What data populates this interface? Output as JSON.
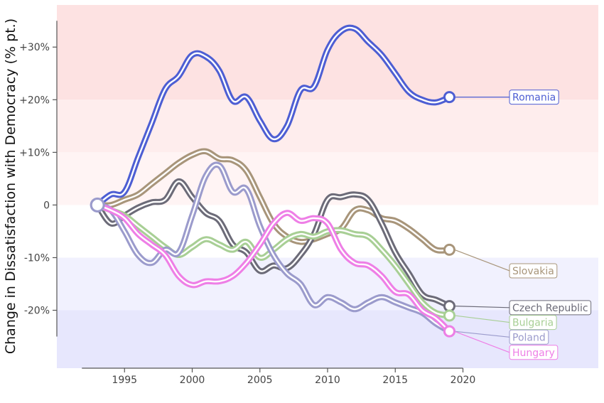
{
  "chart_data": {
    "type": "line",
    "title": "",
    "xlabel": "",
    "ylabel": "Change in Dissatisfaction with Democracy (% pt.)",
    "xlim": [
      1990,
      2030
    ],
    "ylim": [
      -31,
      38
    ],
    "x_ticks": [
      1995,
      2000,
      2005,
      2010,
      2015,
      2020
    ],
    "x_tick_labels": [
      "1995",
      "2000",
      "2005",
      "2010",
      "2015",
      "2020"
    ],
    "y_ticks": [
      30,
      20,
      10,
      0,
      -10,
      -20
    ],
    "y_tick_labels": [
      "+30%",
      "+20%",
      "+10%",
      "0",
      "-10%",
      "-20%"
    ],
    "bands": [
      {
        "from": 20,
        "to": 38,
        "color": "#fde2e2"
      },
      {
        "from": 10,
        "to": 20,
        "color": "#feeded"
      },
      {
        "from": 0,
        "to": 10,
        "color": "#fff4f4"
      },
      {
        "from": -20,
        "to": -10,
        "color": "#f1f1fe"
      },
      {
        "from": -31,
        "to": -20,
        "color": "#e7e7fd"
      }
    ],
    "grid": false,
    "start_marker": {
      "x": 1993,
      "y": 0
    },
    "series": [
      {
        "name": "Romania",
        "color": "#4d5ed3",
        "x": [
          1993,
          1994,
          1995,
          1996,
          1997,
          1998,
          1999,
          2000,
          2001,
          2002,
          2003,
          2004,
          2005,
          2006,
          2007,
          2008,
          2009,
          2010,
          2011,
          2012,
          2013,
          2014,
          2015,
          2016,
          2017,
          2018,
          2019
        ],
        "y": [
          0,
          2,
          2.5,
          9,
          15.5,
          22,
          24.5,
          28.5,
          28.2,
          25.5,
          19.8,
          20.5,
          16,
          12.5,
          15,
          21.8,
          22.5,
          29.5,
          33,
          33.5,
          31,
          28.5,
          25,
          21.5,
          20,
          19.5,
          20.5
        ]
      },
      {
        "name": "Slovakia",
        "color": "#a8957a",
        "x": [
          1993,
          1994,
          1995,
          1996,
          1997,
          1998,
          1999,
          2000,
          2001,
          2002,
          2003,
          2004,
          2005,
          2006,
          2007,
          2008,
          2009,
          2010,
          2011,
          2012,
          2013,
          2014,
          2015,
          2016,
          2017,
          2018,
          2019
        ],
        "y": [
          0,
          0,
          1,
          2,
          4,
          6,
          8,
          9.5,
          10.2,
          8.8,
          8.5,
          6.5,
          1.5,
          -3.5,
          -6,
          -7,
          -6.5,
          -5.5,
          -4.5,
          -1,
          -1,
          -2.5,
          -3,
          -4.5,
          -6.5,
          -8.5,
          -8.5
        ]
      },
      {
        "name": "Czech Republic",
        "color": "#6c6b78",
        "x": [
          1993,
          1994,
          1995,
          1996,
          1997,
          1998,
          1999,
          2000,
          2001,
          2002,
          2003,
          2004,
          2005,
          2006,
          2007,
          2008,
          2009,
          2010,
          2011,
          2012,
          2013,
          2014,
          2015,
          2016,
          2017,
          2018,
          2019
        ],
        "y": [
          0,
          -3.5,
          -2,
          -0.5,
          0.5,
          1,
          4.5,
          1.5,
          -1.5,
          -3,
          -7.5,
          -9,
          -12.5,
          -11.5,
          -12,
          -9.5,
          -5.5,
          1,
          1.5,
          2,
          1,
          -3.5,
          -9,
          -13,
          -17,
          -18,
          -19.2
        ]
      },
      {
        "name": "Bulgaria",
        "color": "#a8cf95",
        "x": [
          1993,
          1994,
          1995,
          1996,
          1997,
          1998,
          1999,
          2000,
          2001,
          2002,
          2003,
          2004,
          2005,
          2006,
          2007,
          2008,
          2009,
          2010,
          2011,
          2012,
          2013,
          2014,
          2015,
          2016,
          2017,
          2018,
          2019
        ],
        "y": [
          0,
          -1,
          -2,
          -4,
          -6,
          -8,
          -9.5,
          -8,
          -6.5,
          -7.5,
          -8.5,
          -7,
          -10,
          -8.5,
          -6.5,
          -5.5,
          -6,
          -5,
          -4.8,
          -5.5,
          -6,
          -8.5,
          -11.5,
          -15,
          -18.5,
          -20.5,
          -21
        ]
      },
      {
        "name": "Poland",
        "color": "#9b9bcc",
        "x": [
          1993,
          1994,
          1995,
          1996,
          1997,
          1998,
          1999,
          2000,
          2001,
          2002,
          2003,
          2004,
          2005,
          2006,
          2007,
          2008,
          2009,
          2010,
          2011,
          2012,
          2013,
          2014,
          2015,
          2016,
          2017,
          2018,
          2019
        ],
        "y": [
          0,
          -1,
          -5,
          -9.5,
          -11,
          -8.5,
          -9,
          -2,
          5.5,
          7.5,
          2.5,
          3,
          -4,
          -9.5,
          -13,
          -15,
          -19,
          -17.5,
          -18.5,
          -19.8,
          -18.5,
          -17.5,
          -18.5,
          -19.5,
          -20.5,
          -22.5,
          -24
        ]
      },
      {
        "name": "Hungary",
        "color": "#ee7fe6",
        "x": [
          1993,
          1994,
          1995,
          1996,
          1997,
          1998,
          1999,
          2000,
          2001,
          2002,
          2003,
          2004,
          2005,
          2006,
          2007,
          2008,
          2009,
          2010,
          2011,
          2012,
          2013,
          2014,
          2015,
          2016,
          2017,
          2018,
          2019
        ],
        "y": [
          0,
          -1,
          -2.5,
          -5.5,
          -7.5,
          -9.5,
          -13.5,
          -15.2,
          -14.5,
          -14.5,
          -13.5,
          -11,
          -7.5,
          -3.5,
          -1.5,
          -3,
          -2.5,
          -3.5,
          -8.5,
          -11,
          -11.5,
          -13.5,
          -16.5,
          -17,
          -20,
          -21.5,
          -24
        ]
      }
    ],
    "labels": [
      {
        "series": "Romania",
        "text": "Romania",
        "label_y": 20.5
      },
      {
        "series": "Slovakia",
        "text": "Slovakia",
        "label_y": -12.5
      },
      {
        "series": "Czech Republic",
        "text": "Czech Republic",
        "label_y": -19.5
      },
      {
        "series": "Bulgaria",
        "text": "Bulgaria",
        "label_y": -22.3
      },
      {
        "series": "Poland",
        "text": "Poland",
        "label_y": -25.1
      },
      {
        "series": "Hungary",
        "text": "Hungary",
        "label_y": -28
      }
    ]
  }
}
